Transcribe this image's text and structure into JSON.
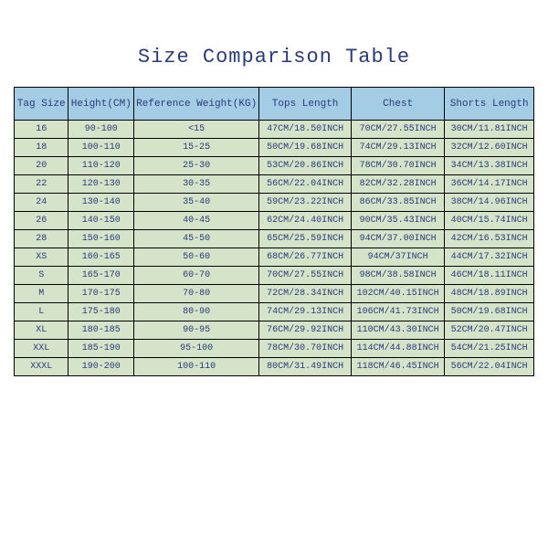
{
  "title": "Size Comparison Table",
  "columns": [
    "Tag Size",
    "Height(CM)",
    "Reference Weight(KG)",
    "Tops Length",
    "Chest",
    "Shorts Length"
  ],
  "rows": [
    [
      "16",
      "90-100",
      "<15",
      "47CM/18.50INCH",
      "70CM/27.55INCH",
      "30CM/11.81INCH"
    ],
    [
      "18",
      "100-110",
      "15-25",
      "50CM/19.68INCH",
      "74CM/29.13INCH",
      "32CM/12.60INCH"
    ],
    [
      "20",
      "110-120",
      "25-30",
      "53CM/20.86INCH",
      "78CM/30.70INCH",
      "34CM/13.38INCH"
    ],
    [
      "22",
      "120-130",
      "30-35",
      "56CM/22.04INCH",
      "82CM/32.28INCH",
      "36CM/14.17INCH"
    ],
    [
      "24",
      "130-140",
      "35-40",
      "59CM/23.22INCH",
      "86CM/33.85INCH",
      "38CM/14.96INCH"
    ],
    [
      "26",
      "140-150",
      "40-45",
      "62CM/24.40INCH",
      "90CM/35.43INCH",
      "40CM/15.74INCH"
    ],
    [
      "28",
      "150-160",
      "45-50",
      "65CM/25.59INCH",
      "94CM/37.00INCH",
      "42CM/16.53INCH"
    ],
    [
      "XS",
      "160-165",
      "50-60",
      "68CM/26.77INCH",
      "94CM/37INCH",
      "44CM/17.32INCH"
    ],
    [
      "S",
      "165-170",
      "60-70",
      "70CM/27.55INCH",
      "98CM/38.58INCH",
      "46CM/18.11INCH"
    ],
    [
      "M",
      "170-175",
      "70-80",
      "72CM/28.34INCH",
      "102CM/40.15INCH",
      "48CM/18.89INCH"
    ],
    [
      "L",
      "175-180",
      "80-90",
      "74CM/29.13INCH",
      "106CM/41.73INCH",
      "50CM/19.68INCH"
    ],
    [
      "XL",
      "180-185",
      "90-95",
      "76CM/29.92INCH",
      "110CM/43.30INCH",
      "52CM/20.47INCH"
    ],
    [
      "XXL",
      "185-190",
      "95-100",
      "78CM/30.70INCH",
      "114CM/44.88INCH",
      "54CM/21.25INCH"
    ],
    [
      "XXXL",
      "190-200",
      "100-110",
      "80CM/31.49INCH",
      "118CM/46.45INCH",
      "56CM/22.04INCH"
    ]
  ],
  "styles": {
    "header_bg": "#a4cce4",
    "cell_bg": "#d5e3c8",
    "text_color": "#2a3a7a",
    "border_color": "#000000",
    "background": "#ffffff",
    "title_fontsize": 22,
    "header_fontsize": 11,
    "cell_fontsize": 10,
    "font_family": "Courier New"
  }
}
